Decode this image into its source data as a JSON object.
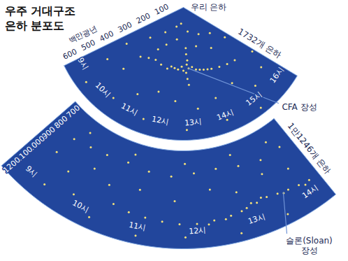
{
  "chart_data": [
    {
      "type": "scatter",
      "title": "우주 거대구조\n은하 분포도",
      "origin_label": "우리 은하",
      "count_label": "1732개 은하",
      "y_label": "백만광년",
      "color": "#f6e27a",
      "xlim": [
        8.8,
        16.3
      ],
      "xticks": [
        {
          "value": 9,
          "label": "9시"
        },
        {
          "value": 10,
          "label": "10시"
        },
        {
          "value": 11,
          "label": "11시"
        },
        {
          "value": 12,
          "label": "12시"
        },
        {
          "value": 13,
          "label": "13시"
        },
        {
          "value": 14,
          "label": "14시"
        },
        {
          "value": 15,
          "label": "15시"
        },
        {
          "value": 16,
          "label": "16시"
        }
      ],
      "ylim": [
        0,
        650
      ],
      "yticks": [
        100,
        200,
        300,
        400,
        500,
        600
      ],
      "x": [
        10.2,
        10.6,
        11.0,
        11.4,
        11.8,
        12.2,
        12.6,
        13.0,
        13.4,
        13.8,
        14.2,
        14.6,
        15.0,
        15.4,
        12.9,
        12.9,
        12.95,
        12.9,
        12.85,
        12.9,
        12.95,
        11.5,
        12.2,
        13.3,
        10.5,
        14.5,
        12.0,
        11.2,
        13.8,
        15.5,
        9.8,
        10.8,
        14.8,
        16.0,
        9.3,
        10.0,
        11.0,
        11.7,
        12.4,
        13.2,
        13.9,
        14.7,
        15.3,
        15.9,
        10.4,
        11.5,
        12.8,
        14.0,
        15.0,
        9.5,
        16.2,
        9.2,
        12.4,
        13.2,
        13.6,
        12.0,
        14.0,
        12.7
      ],
      "values": [
        320,
        300,
        290,
        300,
        310,
        300,
        290,
        300,
        310,
        320,
        330,
        340,
        350,
        360,
        200,
        230,
        260,
        280,
        320,
        350,
        380,
        100,
        80,
        120,
        150,
        150,
        160,
        200,
        200,
        180,
        220,
        240,
        240,
        250,
        450,
        420,
        480,
        430,
        460,
        500,
        470,
        440,
        520,
        480,
        560,
        580,
        600,
        590,
        620,
        600,
        400,
        330,
        305,
        295,
        315,
        295,
        325,
        310
      ],
      "annotations": [
        {
          "text": "CFA 장성",
          "x": 13.0,
          "y": 300
        }
      ]
    },
    {
      "type": "scatter",
      "count_label": "1만1246개 은하",
      "color": "#f6e27a",
      "xlim": [
        8.6,
        14.3
      ],
      "xticks": [
        {
          "value": 9,
          "label": "9시"
        },
        {
          "value": 10,
          "label": "10시"
        },
        {
          "value": 11,
          "label": "11시"
        },
        {
          "value": 12,
          "label": "12시"
        },
        {
          "value": 13,
          "label": "13시"
        },
        {
          "value": 14,
          "label": "14시"
        }
      ],
      "ylim": [
        650,
        1250
      ],
      "yticks": [
        700,
        800,
        900,
        1000,
        1100,
        1200
      ],
      "x": [
        10.5,
        10.8,
        11.1,
        11.4,
        11.7,
        12.0,
        12.3,
        12.6,
        12.9,
        13.1,
        13.3,
        13.5,
        13.7,
        13.9,
        14.1,
        12.2,
        12.8,
        13.2,
        13.6,
        14.0,
        13.0,
        12.5,
        9.2,
        9.6,
        10.0,
        10.5,
        11.0,
        11.5,
        12.0,
        12.5,
        13.0,
        13.5,
        14.0,
        9.1,
        9.5,
        9.9,
        10.3,
        10.9,
        11.6,
        12.3,
        12.8,
        13.4,
        13.9,
        9.3,
        9.8,
        10.2,
        11.0,
        11.8,
        12.7,
        13.5,
        14.1,
        10.6,
        11.8,
        12.9,
        13.8,
        9.4
      ],
      "values": [
        1050,
        1070,
        1080,
        1090,
        1100,
        1100,
        1090,
        1080,
        1060,
        1050,
        1040,
        1050,
        1060,
        1070,
        1080,
        1110,
        1070,
        1030,
        1065,
        1090,
        1040,
        1095,
        820,
        800,
        790,
        780,
        800,
        810,
        790,
        780,
        800,
        820,
        810,
        950,
        1000,
        900,
        950,
        920,
        960,
        900,
        950,
        900,
        950,
        1150,
        1100,
        1180,
        1200,
        1180,
        1200,
        1190,
        1150,
        720,
        730,
        720,
        740,
        730
      ],
      "annotations": [
        {
          "text": "슬론(Sloan)\n장성",
          "x": 13.6,
          "y": 1060
        }
      ]
    }
  ]
}
